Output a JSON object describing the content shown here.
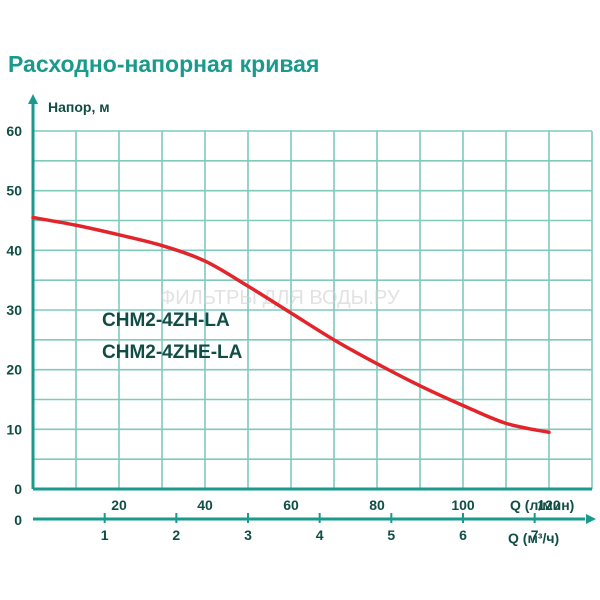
{
  "chart_data": {
    "type": "line",
    "title": "Расходно-напорная кривая",
    "ylabel": "Напор, м",
    "xlabel_primary": "Q (л/мин)",
    "xlabel_secondary": "Q (м³/ч)",
    "ylim": [
      0,
      60
    ],
    "yticks": [
      "0",
      "10",
      "20",
      "30",
      "40",
      "50",
      "60"
    ],
    "xlim_lmin": [
      0,
      130
    ],
    "xticks_lmin": [
      "20",
      "40",
      "60",
      "80",
      "100",
      "120"
    ],
    "xticks_m3h": [
      "0",
      "1",
      "2",
      "3",
      "4",
      "5",
      "6",
      "7"
    ],
    "series": [
      {
        "name": "",
        "color": "#e3242b",
        "x": [
          0,
          10,
          20,
          30,
          40,
          50,
          60,
          70,
          80,
          90,
          100,
          110,
          120
        ],
        "y": [
          45.5,
          44.2,
          42.6,
          40.8,
          38.2,
          34.0,
          29.5,
          25.0,
          21.0,
          17.3,
          14.0,
          11.0,
          9.5
        ]
      }
    ],
    "models": [
      "CHM2-4ZH-LA",
      "CHM2-4ZHE-LA"
    ],
    "watermark": "ФИЛЬТРЫ ДЛЯ ВОДЫ.РУ",
    "grid": true,
    "colors": {
      "accent": "#1a9a8c",
      "grid": "#7fcabd",
      "text": "#0f4d45",
      "curve": "#e3242b"
    }
  }
}
